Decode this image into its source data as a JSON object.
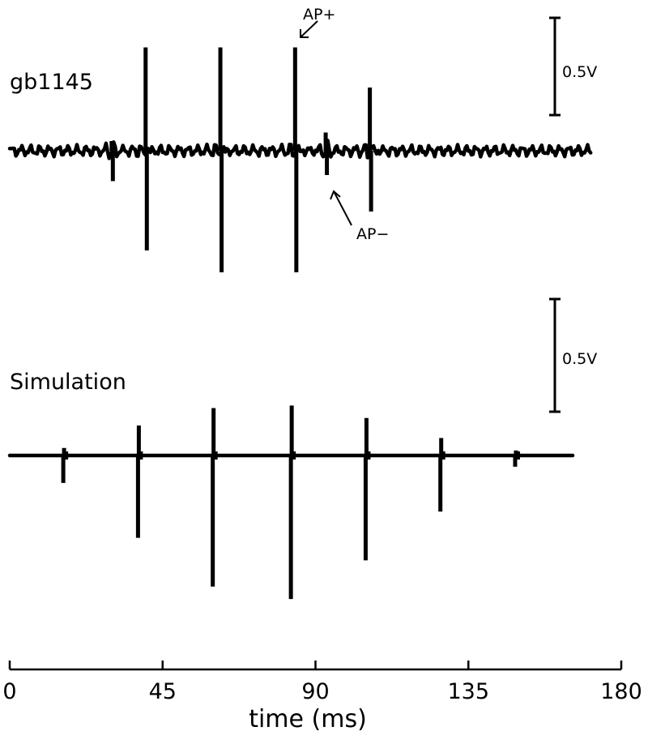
{
  "chart_data": [
    {
      "type": "line",
      "label": "gb1145",
      "scale_bar": "0.5V",
      "annotations": [
        {
          "text": "AP+",
          "x": 84,
          "y": 0.85
        },
        {
          "text": "AP−",
          "x": 93,
          "y": -0.2
        }
      ],
      "spikes": [
        {
          "x": 30,
          "up": 0.08,
          "down": -0.25
        },
        {
          "x": 40,
          "up": 0.85,
          "down": -0.82
        },
        {
          "x": 62,
          "up": 0.85,
          "down": -1.0
        },
        {
          "x": 84,
          "up": 0.85,
          "down": -1.0
        },
        {
          "x": 93,
          "up": 0.15,
          "down": -0.2
        },
        {
          "x": 106,
          "up": 0.52,
          "down": -0.5
        }
      ],
      "noise_amplitude": 0.05
    },
    {
      "type": "line",
      "label": "Simulation",
      "scale_bar": "0.5V",
      "spikes": [
        {
          "x": 16,
          "up": 0.06,
          "down": -0.22
        },
        {
          "x": 38,
          "up": 0.24,
          "down": -0.66
        },
        {
          "x": 60,
          "up": 0.38,
          "down": -1.05
        },
        {
          "x": 83,
          "up": 0.4,
          "down": -1.15
        },
        {
          "x": 105,
          "up": 0.3,
          "down": -0.84
        },
        {
          "x": 127,
          "up": 0.14,
          "down": -0.45
        },
        {
          "x": 149,
          "up": 0.04,
          "down": -0.09
        }
      ]
    }
  ],
  "axis": {
    "xlabel": "time (ms)",
    "xlim": [
      0,
      180
    ],
    "ticks": [
      {
        "value": 0,
        "label": "0"
      },
      {
        "value": 45,
        "label": "45"
      },
      {
        "value": 90,
        "label": "90"
      },
      {
        "value": 135,
        "label": "135"
      },
      {
        "value": 180,
        "label": "180"
      }
    ]
  }
}
